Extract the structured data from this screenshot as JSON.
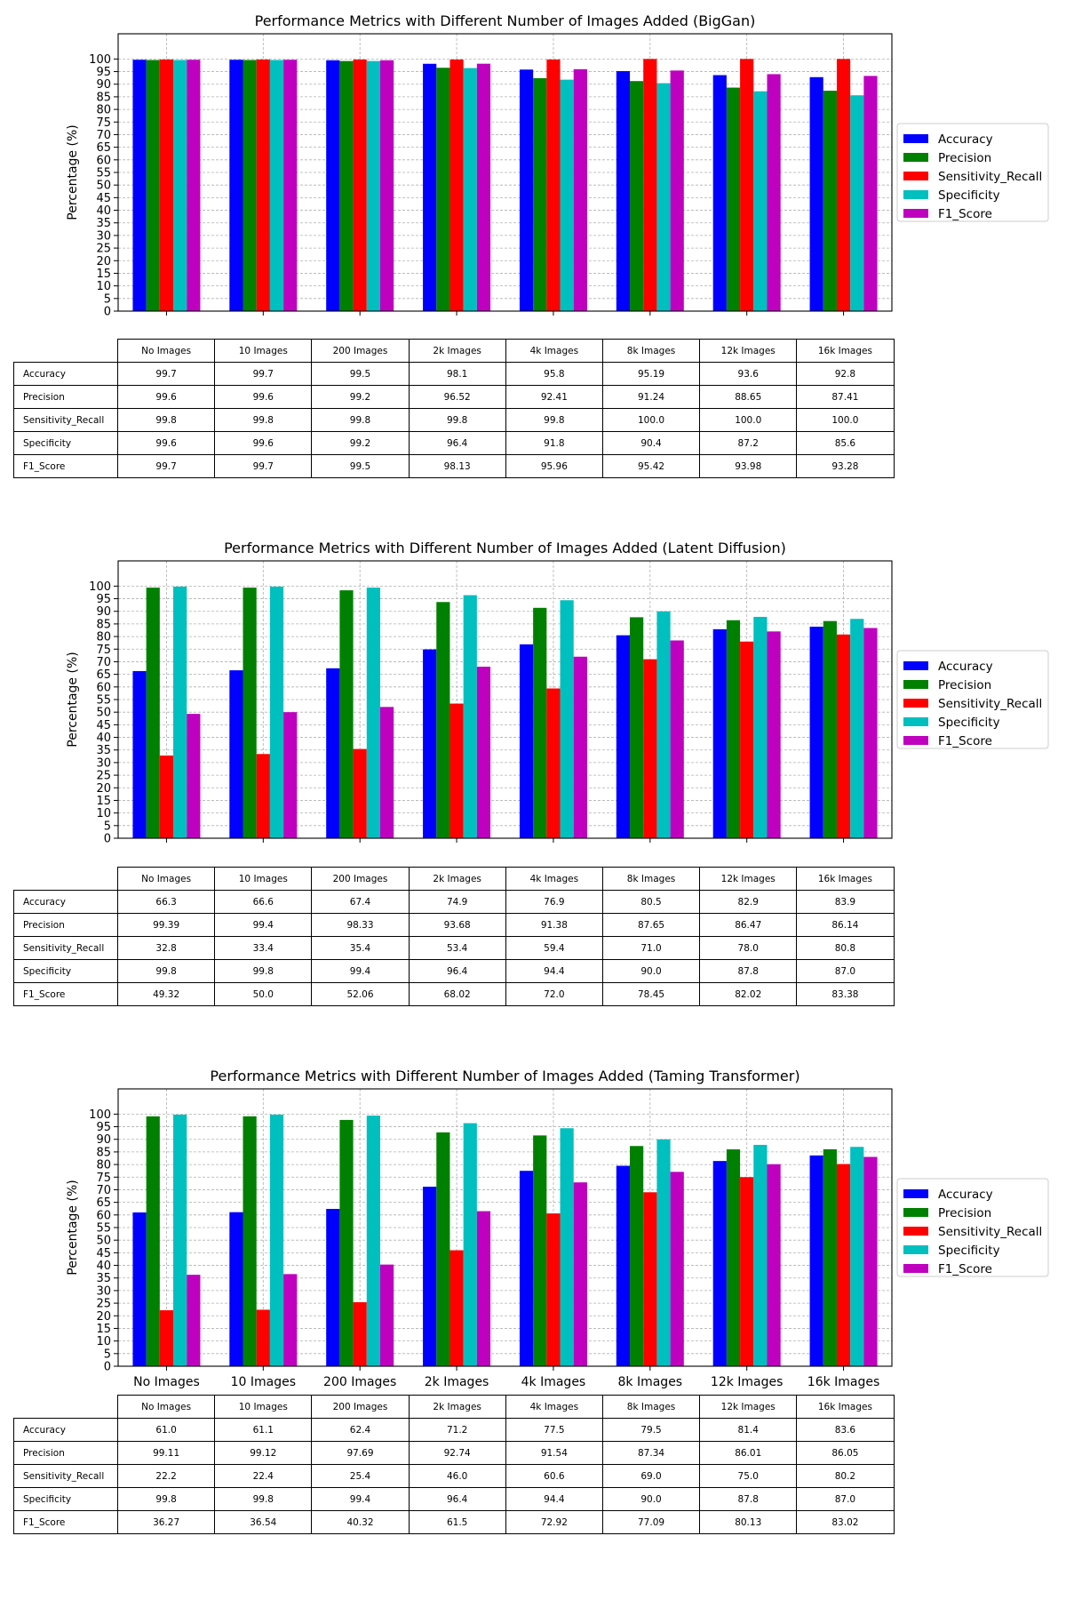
{
  "chart_data": [
    {
      "type": "bar",
      "title": "Performance Metrics with Different Number of Images Added (BigGan)",
      "xlabel": "",
      "ylabel": "Percentage (%)",
      "ylim": [
        0,
        110
      ],
      "yticks": [
        0,
        5,
        10,
        15,
        20,
        25,
        30,
        35,
        40,
        45,
        50,
        55,
        60,
        65,
        70,
        75,
        80,
        85,
        90,
        95,
        100
      ],
      "grid": true,
      "legend_position": "right",
      "show_x_tick_labels": false,
      "categories": [
        "No Images",
        "10 Images",
        "200 Images",
        "2k Images",
        "4k Images",
        "8k Images",
        "12k Images",
        "16k Images"
      ],
      "series": [
        {
          "name": "Accuracy",
          "color": "#0000ff",
          "values": [
            "99.7",
            "99.7",
            "99.5",
            "98.1",
            "95.8",
            "95.19",
            "93.6",
            "92.8"
          ]
        },
        {
          "name": "Precision",
          "color": "#008000",
          "values": [
            "99.6",
            "99.6",
            "99.2",
            "96.52",
            "92.41",
            "91.24",
            "88.65",
            "87.41"
          ]
        },
        {
          "name": "Sensitivity_Recall",
          "color": "#ff0000",
          "values": [
            "99.8",
            "99.8",
            "99.8",
            "99.8",
            "99.8",
            "100.0",
            "100.0",
            "100.0"
          ]
        },
        {
          "name": "Specificity",
          "color": "#00bfbf",
          "values": [
            "99.6",
            "99.6",
            "99.2",
            "96.4",
            "91.8",
            "90.4",
            "87.2",
            "85.6"
          ]
        },
        {
          "name": "F1_Score",
          "color": "#bf00bf",
          "values": [
            "99.7",
            "99.7",
            "99.5",
            "98.13",
            "95.96",
            "95.42",
            "93.98",
            "93.28"
          ]
        }
      ]
    },
    {
      "type": "bar",
      "title": "Performance Metrics with Different Number of Images Added (Latent Diffusion)",
      "xlabel": "",
      "ylabel": "Percentage (%)",
      "ylim": [
        0,
        110
      ],
      "yticks": [
        0,
        5,
        10,
        15,
        20,
        25,
        30,
        35,
        40,
        45,
        50,
        55,
        60,
        65,
        70,
        75,
        80,
        85,
        90,
        95,
        100
      ],
      "grid": true,
      "legend_position": "right",
      "show_x_tick_labels": false,
      "categories": [
        "No Images",
        "10 Images",
        "200 Images",
        "2k Images",
        "4k Images",
        "8k Images",
        "12k Images",
        "16k Images"
      ],
      "series": [
        {
          "name": "Accuracy",
          "color": "#0000ff",
          "values": [
            "66.3",
            "66.6",
            "67.4",
            "74.9",
            "76.9",
            "80.5",
            "82.9",
            "83.9"
          ]
        },
        {
          "name": "Precision",
          "color": "#008000",
          "values": [
            "99.39",
            "99.4",
            "98.33",
            "93.68",
            "91.38",
            "87.65",
            "86.47",
            "86.14"
          ]
        },
        {
          "name": "Sensitivity_Recall",
          "color": "#ff0000",
          "values": [
            "32.8",
            "33.4",
            "35.4",
            "53.4",
            "59.4",
            "71.0",
            "78.0",
            "80.8"
          ]
        },
        {
          "name": "Specificity",
          "color": "#00bfbf",
          "values": [
            "99.8",
            "99.8",
            "99.4",
            "96.4",
            "94.4",
            "90.0",
            "87.8",
            "87.0"
          ]
        },
        {
          "name": "F1_Score",
          "color": "#bf00bf",
          "values": [
            "49.32",
            "50.0",
            "52.06",
            "68.02",
            "72.0",
            "78.45",
            "82.02",
            "83.38"
          ]
        }
      ]
    },
    {
      "type": "bar",
      "title": "Performance Metrics with Different Number of Images Added (Taming Transformer)",
      "xlabel": "",
      "ylabel": "Percentage (%)",
      "ylim": [
        0,
        110
      ],
      "yticks": [
        0,
        5,
        10,
        15,
        20,
        25,
        30,
        35,
        40,
        45,
        50,
        55,
        60,
        65,
        70,
        75,
        80,
        85,
        90,
        95,
        100
      ],
      "grid": true,
      "legend_position": "right",
      "show_x_tick_labels": true,
      "categories": [
        "No Images",
        "10 Images",
        "200 Images",
        "2k Images",
        "4k Images",
        "8k Images",
        "12k Images",
        "16k Images"
      ],
      "series": [
        {
          "name": "Accuracy",
          "color": "#0000ff",
          "values": [
            "61.0",
            "61.1",
            "62.4",
            "71.2",
            "77.5",
            "79.5",
            "81.4",
            "83.6"
          ]
        },
        {
          "name": "Precision",
          "color": "#008000",
          "values": [
            "99.11",
            "99.12",
            "97.69",
            "92.74",
            "91.54",
            "87.34",
            "86.01",
            "86.05"
          ]
        },
        {
          "name": "Sensitivity_Recall",
          "color": "#ff0000",
          "values": [
            "22.2",
            "22.4",
            "25.4",
            "46.0",
            "60.6",
            "69.0",
            "75.0",
            "80.2"
          ]
        },
        {
          "name": "Specificity",
          "color": "#00bfbf",
          "values": [
            "99.8",
            "99.8",
            "99.4",
            "96.4",
            "94.4",
            "90.0",
            "87.8",
            "87.0"
          ]
        },
        {
          "name": "F1_Score",
          "color": "#bf00bf",
          "values": [
            "36.27",
            "36.54",
            "40.32",
            "61.5",
            "72.92",
            "77.09",
            "80.13",
            "83.02"
          ]
        }
      ]
    }
  ]
}
